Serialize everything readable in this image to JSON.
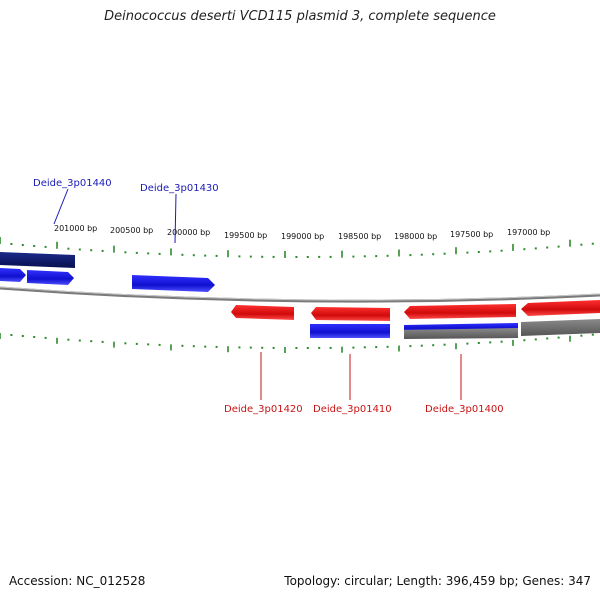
{
  "title": "Deinococcus deserti VCD115 plasmid 3, complete sequence",
  "ticks": [
    "201000 bp",
    "200500 bp",
    "200000 bp",
    "199500 bp",
    "199000 bp",
    "198500 bp",
    "198000 bp",
    "197500 bp",
    "197000 bp"
  ],
  "gene_labels": [
    {
      "text": "Deide_3p01440",
      "color": "#1a1ab8"
    },
    {
      "text": "Deide_3p01430",
      "color": "#1a1ab8"
    },
    {
      "text": "Deide_3p01420",
      "color": "#c81414"
    },
    {
      "text": "Deide_3p01410",
      "color": "#c81414"
    },
    {
      "text": "Deide_3p01400",
      "color": "#c81414"
    }
  ],
  "footer": {
    "accession": "Accession: NC_012528",
    "summary": "Topology: circular; Length: 396,459 bp; Genes: 347"
  },
  "colors": {
    "forward_gene": "#1010e0",
    "forward_dark": "#0a1a6e",
    "reverse_gene": "#e01010",
    "backbone": "#888888",
    "tick": "#2e8b2e",
    "grey_gene": "#6e6e6e"
  }
}
